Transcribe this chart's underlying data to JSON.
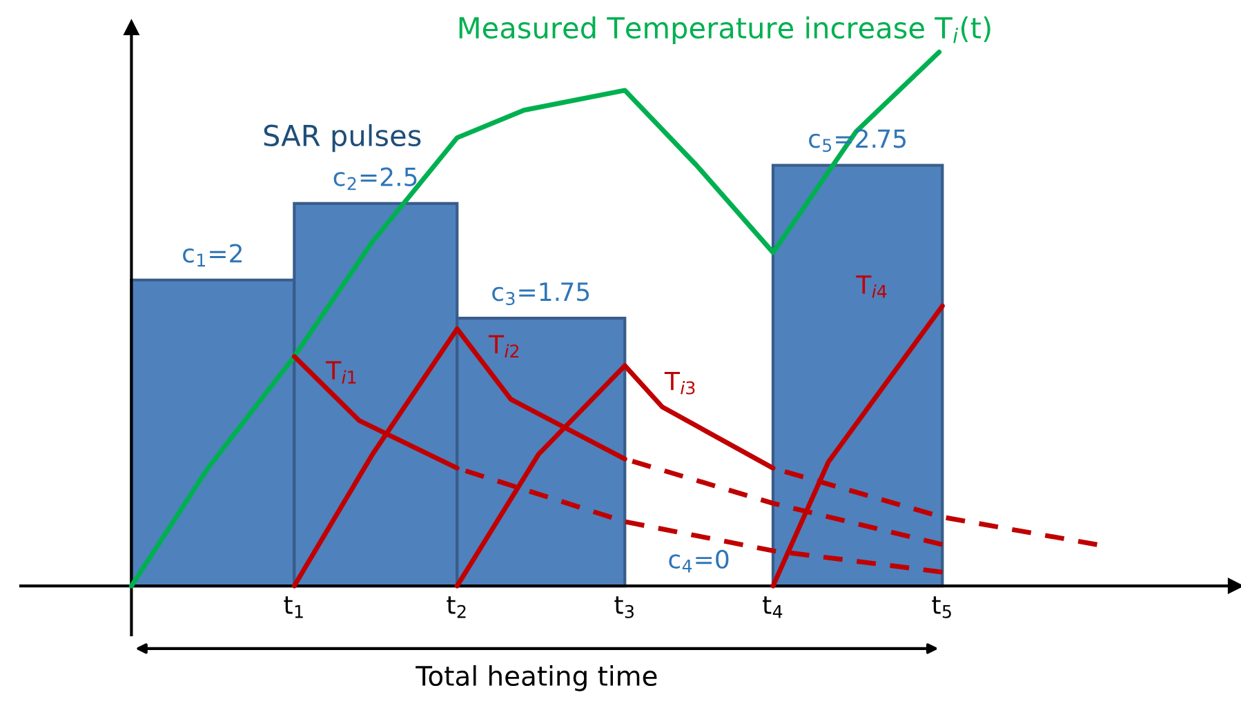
{
  "chart_data": {
    "type": "bar",
    "xlabel": "Total heating time",
    "xlim": [
      -0.68,
      6.78
    ],
    "ylim": [
      -0.32,
      3.65
    ],
    "xticks": [
      {
        "value": 1,
        "label": "t$_{1}$"
      },
      {
        "value": 2,
        "label": "t$_{2}$"
      },
      {
        "value": 3.03,
        "label": "t$_{3}$"
      },
      {
        "value": 3.94,
        "label": "t$_{4}$"
      },
      {
        "value": 4.98,
        "label": "t$_{5}$"
      }
    ],
    "tick_labels": "x",
    "grid": false,
    "legend": false,
    "series": [
      {
        "color": "#4f81bd",
        "x": [
          0.5,
          1.5,
          2.515,
          3.485,
          4.46
        ],
        "values": [
          2,
          2.5,
          1.75,
          0,
          2.75
        ],
        "value_labels": [
          "c$_{1}$=2",
          "c$_{2}$=2.5",
          "c$_{3}$=1.75",
          "c$_{4}$=0",
          "c$_{5}$=2.75"
        ]
      },
      {
        "type": "line",
        "color": "#00b050",
        "line_style": "solid",
        "x": [
          0,
          0.47,
          1,
          1.48,
          2.0,
          2.41,
          3.03,
          3.47,
          3.94,
          4.45,
          4.96
        ],
        "values": [
          0,
          0.77,
          1.5,
          2.25,
          2.93,
          3.11,
          3.24,
          2.75,
          2.18,
          2.97,
          3.49
        ]
      },
      {
        "type": "line",
        "color": "#c00000",
        "line_style": "solid",
        "x": [
          1,
          1.48,
          2
        ],
        "values": [
          0,
          0.86,
          1.68
        ]
      },
      {
        "type": "line",
        "color": "#c00000",
        "line_style": "solid",
        "x": [
          2,
          2.5,
          3.03
        ],
        "values": [
          0,
          0.86,
          1.44
        ]
      },
      {
        "type": "line",
        "color": "#c00000",
        "line_style": "solid",
        "x": [
          3.94,
          4.28,
          4.98
        ],
        "values": [
          0,
          0.81,
          1.83
        ]
      },
      {
        "type": "line",
        "color": "#c00000",
        "line_style": "solid",
        "x": [
          1,
          1.4,
          2.0
        ],
        "values": [
          1.5,
          1.08,
          0.77
        ]
      },
      {
        "type": "line",
        "color": "#c00000",
        "line_style": "dashed",
        "x": [
          2.0,
          3.03,
          3.94,
          4.98
        ],
        "values": [
          0.77,
          0.42,
          0.23,
          0.09
        ]
      },
      {
        "type": "line",
        "color": "#c00000",
        "line_style": "solid",
        "x": [
          2.0,
          2.33,
          3.03
        ],
        "values": [
          1.68,
          1.22,
          0.83
        ]
      },
      {
        "type": "line",
        "color": "#c00000",
        "line_style": "dashed",
        "x": [
          3.03,
          3.94,
          4.98
        ],
        "values": [
          0.83,
          0.54,
          0.27
        ]
      },
      {
        "type": "line",
        "color": "#c00000",
        "line_style": "solid",
        "x": [
          3.03,
          3.26,
          3.94
        ],
        "values": [
          1.44,
          1.17,
          0.77
        ]
      },
      {
        "type": "line",
        "color": "#c00000",
        "line_style": "dashed",
        "x": [
          3.94,
          4.98,
          5.93
        ],
        "values": [
          0.77,
          0.45,
          0.27
        ]
      }
    ],
    "annotations": [
      "Measured Temperature increase T$_{i}$(t)",
      "SAR pulses",
      {
        "text": "T$_{i1}$",
        "x": 1.1,
        "y": 1.42
      },
      {
        "text": "T$_{i2}$",
        "x": 2.1,
        "y": 1.59
      },
      {
        "text": "T$_{i3}$",
        "x": 3.18,
        "y": 1.35
      },
      {
        "text": "T$_{i4}$",
        "x": 4.98,
        "y": 1.83
      }
    ]
  }
}
